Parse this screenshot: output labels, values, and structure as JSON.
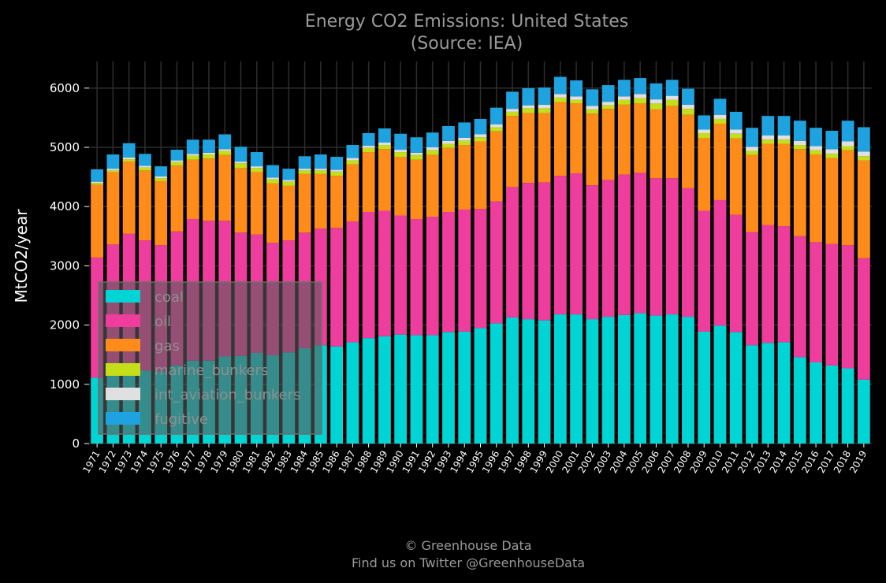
{
  "chart_data": {
    "type": "bar",
    "stacked": true,
    "title": "Energy CO2 Emissions: United States",
    "subtitle": "(Source: IEA)",
    "xlabel": "",
    "ylabel": "MtCO2/year",
    "ylim": [
      0,
      6450
    ],
    "yticks": [
      0,
      1000,
      2000,
      3000,
      4000,
      5000,
      6000
    ],
    "grid": true,
    "legend_position": "lower-left",
    "categories": [
      "1971",
      "1972",
      "1973",
      "1974",
      "1975",
      "1976",
      "1977",
      "1978",
      "1979",
      "1980",
      "1981",
      "1982",
      "1983",
      "1984",
      "1985",
      "1986",
      "1987",
      "1988",
      "1989",
      "1990",
      "1991",
      "1992",
      "1993",
      "1994",
      "1995",
      "1996",
      "1997",
      "1998",
      "1999",
      "2000",
      "2001",
      "2002",
      "2003",
      "2004",
      "2005",
      "2006",
      "2007",
      "2008",
      "2009",
      "2010",
      "2011",
      "2012",
      "2013",
      "2014",
      "2015",
      "2016",
      "2017",
      "2018",
      "2019"
    ],
    "series": [
      {
        "name": "coal",
        "color": "#00d4d4",
        "values": [
          1110,
          1180,
          1250,
          1230,
          1220,
          1320,
          1400,
          1400,
          1470,
          1480,
          1530,
          1490,
          1540,
          1610,
          1660,
          1640,
          1710,
          1780,
          1810,
          1840,
          1830,
          1830,
          1880,
          1890,
          1950,
          2030,
          2130,
          2100,
          2080,
          2180,
          2180,
          2100,
          2140,
          2170,
          2200,
          2160,
          2180,
          2140,
          1890,
          1990,
          1880,
          1660,
          1700,
          1710,
          1460,
          1370,
          1320,
          1270,
          1080
        ]
      },
      {
        "name": "oil",
        "color": "#ee3d9c",
        "values": [
          2030,
          2180,
          2290,
          2200,
          2130,
          2260,
          2390,
          2360,
          2290,
          2080,
          2000,
          1900,
          1890,
          1950,
          1970,
          2000,
          2040,
          2130,
          2120,
          2010,
          1960,
          2000,
          2030,
          2060,
          2010,
          2060,
          2200,
          2300,
          2330,
          2340,
          2380,
          2260,
          2310,
          2370,
          2370,
          2320,
          2300,
          2170,
          2040,
          2120,
          1980,
          1910,
          1990,
          1960,
          2040,
          2030,
          2050,
          2080,
          2050
        ]
      },
      {
        "name": "gas",
        "color": "#ff8c1a",
        "values": [
          1230,
          1220,
          1220,
          1180,
          1080,
          1110,
          1000,
          1050,
          1110,
          1090,
          1050,
          1000,
          920,
          990,
          920,
          880,
          960,
          1010,
          1040,
          990,
          1000,
          1040,
          1080,
          1090,
          1140,
          1180,
          1200,
          1180,
          1170,
          1240,
          1180,
          1210,
          1200,
          1180,
          1170,
          1160,
          1220,
          1240,
          1230,
          1290,
          1290,
          1300,
          1370,
          1390,
          1470,
          1480,
          1450,
          1600,
          1650
        ]
      },
      {
        "name": "marine_bunkers",
        "color": "#c5de1a",
        "values": [
          30,
          30,
          40,
          50,
          50,
          60,
          70,
          70,
          70,
          80,
          70,
          70,
          70,
          60,
          60,
          70,
          70,
          70,
          70,
          80,
          80,
          80,
          70,
          70,
          70,
          70,
          70,
          80,
          80,
          80,
          60,
          70,
          60,
          80,
          90,
          100,
          100,
          100,
          80,
          80,
          80,
          70,
          70,
          70,
          70,
          70,
          70,
          70,
          70
        ]
      },
      {
        "name": "int_aviation_bunkers",
        "color": "#e0e0e0",
        "values": [
          20,
          30,
          30,
          30,
          30,
          30,
          30,
          30,
          30,
          30,
          30,
          30,
          30,
          30,
          30,
          30,
          40,
          40,
          40,
          40,
          40,
          50,
          50,
          50,
          50,
          50,
          50,
          50,
          60,
          60,
          60,
          60,
          60,
          60,
          70,
          70,
          70,
          70,
          60,
          70,
          70,
          70,
          70,
          70,
          70,
          70,
          80,
          80,
          80
        ]
      },
      {
        "name": "fugitive",
        "color": "#1fa3e0",
        "values": [
          210,
          240,
          240,
          200,
          170,
          180,
          240,
          220,
          250,
          250,
          240,
          210,
          190,
          210,
          240,
          220,
          220,
          210,
          240,
          270,
          260,
          250,
          250,
          260,
          260,
          280,
          290,
          290,
          290,
          290,
          270,
          280,
          280,
          280,
          270,
          270,
          270,
          270,
          240,
          270,
          300,
          320,
          330,
          330,
          340,
          310,
          310,
          350,
          410
        ]
      }
    ]
  },
  "footer": {
    "copyright": "© Greenhouse Data",
    "twitter": "Find us on Twitter @GreenhouseData"
  }
}
